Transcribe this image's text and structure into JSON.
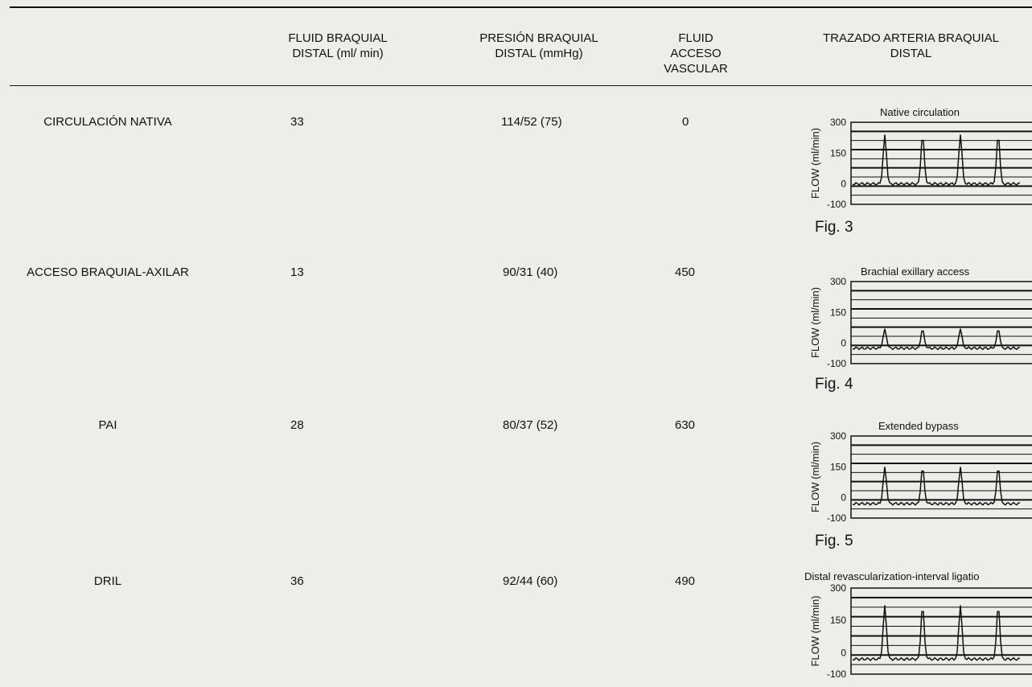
{
  "headers": [
    "",
    "FLUID BRAQUIAL\nDISTAL (ml/ min)",
    "PRESIÓN BRAQUIAL\nDISTAL (mmHg)",
    "FLUID\nACCESO\nVASCULAR",
    "TRAZADO ARTERIA BRAQUIAL\nDISTAL"
  ],
  "rows": [
    {
      "label": "CIRCULACIÓN NATIVA",
      "flow": "33",
      "pressure": "114/52 (75)",
      "access": "0"
    },
    {
      "label": "ACCESO BRAQUIAL-AXILAR",
      "flow": "13",
      "pressure": "90/31 (40)",
      "access": "450"
    },
    {
      "label": "PAI",
      "flow": "28",
      "pressure": "80/37 (52)",
      "access": "630"
    },
    {
      "label": "DRIL",
      "flow": "36",
      "pressure": "92/44 (60)",
      "access": "490"
    }
  ],
  "chart_data": [
    {
      "type": "line",
      "title": "Native circulation",
      "ylabel": "FLOW (ml/min)",
      "yticks": [
        "300",
        "150",
        "0",
        "-100"
      ],
      "ylim": [
        -100,
        300
      ],
      "caption": "Fig. 3",
      "baseline": 0,
      "peak": 240,
      "peaks": 4
    },
    {
      "type": "line",
      "title": "Brachial exillary access",
      "ylabel": "FLOW (ml/min)",
      "yticks": [
        "300",
        "150",
        "0",
        "-100"
      ],
      "ylim": [
        -100,
        300
      ],
      "caption": "Fig. 4",
      "baseline": -25,
      "peak": 70,
      "peaks": 4
    },
    {
      "type": "line",
      "title": "Extended bypass",
      "ylabel": "FLOW (ml/min)",
      "yticks": [
        "300",
        "150",
        "0",
        "-100"
      ],
      "ylim": [
        -100,
        300
      ],
      "caption": "Fig. 5",
      "baseline": -30,
      "peak": 150,
      "peaks": 4
    },
    {
      "type": "line",
      "title": "Distal revascularization-interval ligatio",
      "ylabel": "FLOW (ml/min)",
      "yticks": [
        "300",
        "150",
        "0",
        "-100"
      ],
      "ylim": [
        -100,
        300
      ],
      "caption": "",
      "baseline": -30,
      "peak": 220,
      "peaks": 4
    }
  ]
}
